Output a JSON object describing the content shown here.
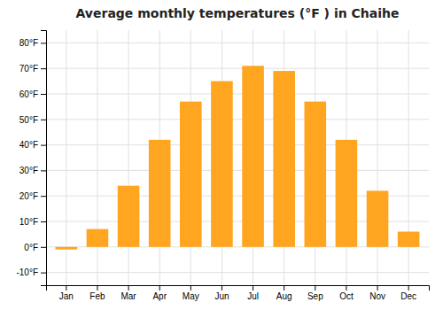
{
  "chart_data": {
    "type": "bar",
    "title": "Average monthly temperatures (°F ) in Chaihe",
    "categories": [
      "Jan",
      "Feb",
      "Mar",
      "Apr",
      "May",
      "Jun",
      "Jul",
      "Aug",
      "Sep",
      "Oct",
      "Nov",
      "Dec"
    ],
    "values": [
      -1,
      7,
      24,
      42,
      57,
      65,
      71,
      69,
      57,
      42,
      22,
      6
    ],
    "color": "#FFA520",
    "ylim": [
      -15,
      85
    ],
    "yticks": [
      {
        "value": -10,
        "label": "-10°F"
      },
      {
        "value": 0,
        "label": "0°F"
      },
      {
        "value": 10,
        "label": "10°F"
      },
      {
        "value": 20,
        "label": "20°F"
      },
      {
        "value": 30,
        "label": "30°F"
      },
      {
        "value": 40,
        "label": "40°F"
      },
      {
        "value": 50,
        "label": "50°F"
      },
      {
        "value": 60,
        "label": "60°F"
      },
      {
        "value": 70,
        "label": "70°F"
      },
      {
        "value": 80,
        "label": "80°F"
      }
    ],
    "grid": true
  }
}
